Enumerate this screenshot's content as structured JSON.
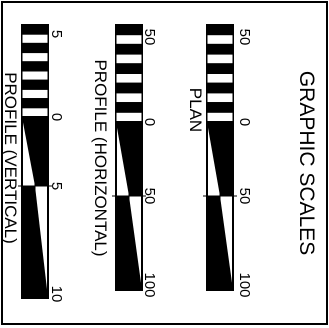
{
  "title": "GRAPHIC SCALES",
  "scales": [
    {
      "label": "PLAN",
      "ticks": [
        "50",
        "0",
        "50",
        "100"
      ]
    },
    {
      "label": "PROFILE (HORIZONTAL)",
      "ticks": [
        "50",
        "0",
        "50",
        "100"
      ]
    },
    {
      "label": "PROFILE (VERTICAL)",
      "ticks": [
        "5",
        "0",
        "5",
        "10"
      ]
    }
  ],
  "colors": {
    "ink": "#000000",
    "paper": "#ffffff"
  }
}
